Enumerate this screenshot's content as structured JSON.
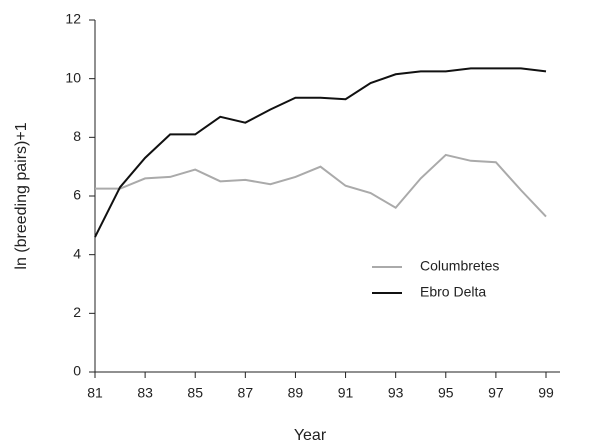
{
  "chart_data": {
    "type": "line",
    "x_label": "Year",
    "y_label": "ln (breeding pairs)+1",
    "x": [
      81,
      82,
      83,
      84,
      85,
      86,
      87,
      88,
      89,
      90,
      91,
      92,
      93,
      94,
      95,
      96,
      97,
      98,
      99
    ],
    "series": [
      {
        "name": "Columbretes",
        "color": "#aaaaaa",
        "values": [
          6.25,
          6.25,
          6.6,
          6.65,
          6.9,
          6.5,
          6.55,
          6.4,
          6.65,
          7.0,
          6.35,
          6.1,
          5.6,
          6.6,
          7.4,
          7.2,
          7.15,
          6.2,
          5.3
        ]
      },
      {
        "name": "Ebro Delta",
        "color": "#111111",
        "values": [
          4.6,
          6.3,
          7.3,
          8.1,
          8.1,
          8.7,
          8.5,
          8.95,
          9.35,
          9.35,
          9.3,
          9.85,
          10.15,
          10.25,
          10.25,
          10.35,
          10.35,
          10.35,
          10.25
        ]
      }
    ],
    "xlim": [
      81,
      99
    ],
    "xticks": [
      81,
      83,
      85,
      87,
      89,
      91,
      93,
      95,
      97,
      99
    ],
    "ylim": [
      0,
      12
    ],
    "yticks": [
      0,
      2,
      4,
      6,
      8,
      10,
      12
    ],
    "legend": "right"
  }
}
